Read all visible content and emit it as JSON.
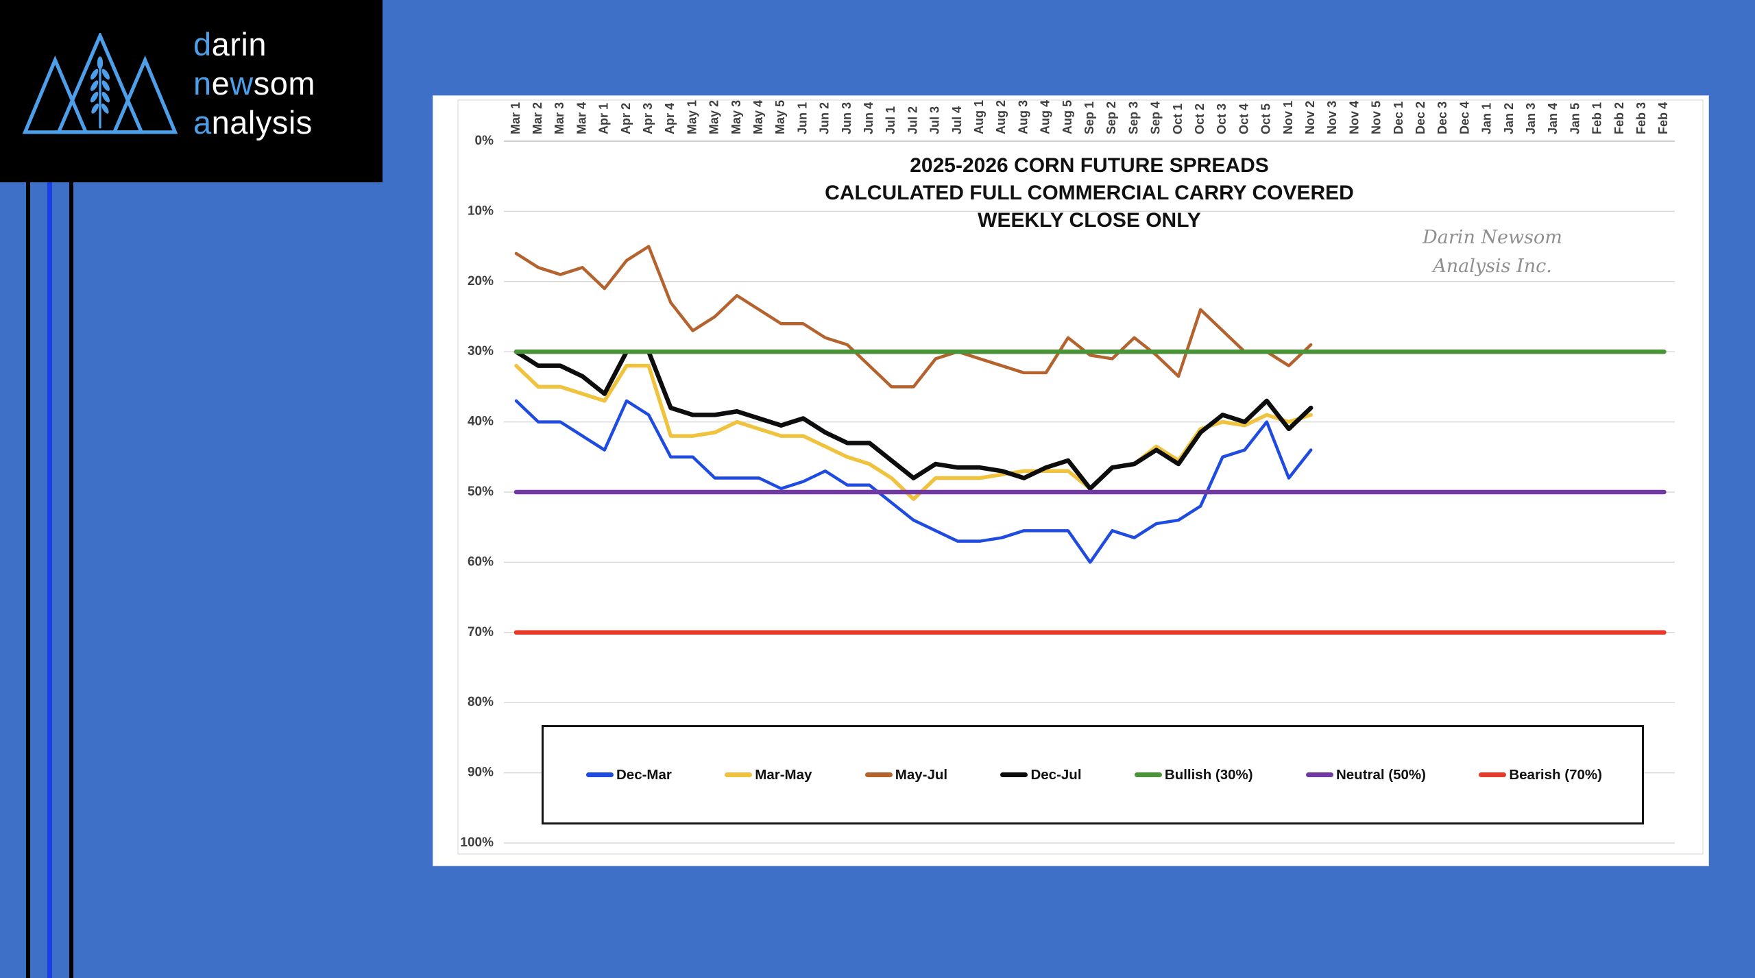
{
  "logo": {
    "darin_accent": "d",
    "darin_rest": "arin",
    "newsom_n": "n",
    "newsom_e": "e",
    "newsom_w": "w",
    "newsom_rest": "som",
    "analysis_accent": "a",
    "analysis_rest": "nalysis",
    "accent_color": "#4c9fe8"
  },
  "chart": {
    "title_line1": "2025-2026 CORN FUTURE SPREADS",
    "title_line2": "CALCULATED FULL COMMERCIAL CARRY COVERED",
    "title_line3": "WEEKLY CLOSE ONLY",
    "watermark_line1": "Darin Newsom",
    "watermark_line2": "Analysis Inc."
  },
  "legend": {
    "items": [
      {
        "label": "Dec-Mar",
        "color": "#1f4be0"
      },
      {
        "label": "Mar-May",
        "color": "#f0c33f"
      },
      {
        "label": "May-Jul",
        "color": "#b4632e"
      },
      {
        "label": "Dec-Jul",
        "color": "#0d0d0d"
      },
      {
        "label": "Bullish (30%)",
        "color": "#4a9338"
      },
      {
        "label": "Neutral (50%)",
        "color": "#7239a3"
      },
      {
        "label": "Bearish (70%)",
        "color": "#e53a2c"
      }
    ]
  },
  "chart_data": {
    "type": "line",
    "title": "2025-2026 CORN FUTURE SPREADS / CALCULATED FULL COMMERCIAL CARRY COVERED / WEEKLY CLOSE ONLY",
    "x_categories": [
      "Mar 1",
      "Mar 2",
      "Mar 3",
      "Mar 4",
      "Apr 1",
      "Apr 2",
      "Apr 3",
      "Apr 4",
      "May 1",
      "May 2",
      "May 3",
      "May 4",
      "May 5",
      "Jun 1",
      "Jun 2",
      "Jun 3",
      "Jun 4",
      "Jul 1",
      "Jul 2",
      "Jul 3",
      "Jul 4",
      "Aug 1",
      "Aug 2",
      "Aug 3",
      "Aug 4",
      "Aug 5",
      "Sep 1",
      "Sep 2",
      "Sep 3",
      "Sep 4",
      "Oct 1",
      "Oct 2",
      "Oct 3",
      "Oct 4",
      "Oct 5",
      "Nov 1",
      "Nov 2",
      "Nov 3",
      "Nov 4",
      "Nov 5",
      "Dec 1",
      "Dec 2",
      "Dec 3",
      "Dec 4",
      "Jan 1",
      "Jan 2",
      "Jan 3",
      "Jan 4",
      "Jan 5",
      "Feb 1",
      "Feb 2",
      "Feb 3",
      "Feb 4"
    ],
    "y_axis": {
      "min": 0,
      "max": 100,
      "tick_step": 10,
      "unit": "%",
      "inverted": true,
      "tick_labels": [
        "0%",
        "10%",
        "20%",
        "30%",
        "40%",
        "50%",
        "60%",
        "70%",
        "80%",
        "90%",
        "100%"
      ]
    },
    "series": [
      {
        "name": "Dec-Mar",
        "color": "#1f4be0",
        "values": [
          37,
          40,
          40,
          42,
          44,
          37,
          39,
          45,
          45,
          48,
          48,
          48,
          49.5,
          48.5,
          47,
          49,
          49,
          51.5,
          54,
          55.5,
          57,
          57,
          56.5,
          55.5,
          55.5,
          55.5,
          60,
          55.5,
          56.5,
          54.5,
          54,
          52,
          45,
          44,
          40,
          48,
          44
        ]
      },
      {
        "name": "Mar-May",
        "color": "#f0c33f",
        "values": [
          32,
          35,
          35,
          36,
          37,
          32,
          32,
          42,
          42,
          41.5,
          40,
          41,
          42,
          42,
          43.5,
          45,
          46,
          48,
          51,
          48,
          48,
          48,
          47.5,
          47,
          47,
          47,
          49.5,
          46.5,
          46,
          43.5,
          45.5,
          41,
          40,
          40.5,
          39,
          40,
          39
        ]
      },
      {
        "name": "May-Jul",
        "color": "#b4632e",
        "values": [
          16,
          18,
          19,
          18,
          21,
          17,
          15,
          23,
          27,
          25,
          22,
          24,
          26,
          26,
          28,
          29,
          32,
          35,
          35,
          31,
          30,
          31,
          32,
          33,
          33,
          28,
          30.5,
          31,
          28,
          30.5,
          33.5,
          24,
          27,
          30,
          30,
          32,
          29
        ]
      },
      {
        "name": "Dec-Jul",
        "color": "#0d0d0d",
        "values": [
          30,
          32,
          32,
          33.5,
          36,
          30,
          30,
          38,
          39,
          39,
          38.5,
          39.5,
          40.5,
          39.5,
          41.5,
          43,
          43,
          45.5,
          48,
          46,
          46.5,
          46.5,
          47,
          48,
          46.5,
          45.5,
          49.5,
          46.5,
          46,
          44,
          46,
          41.5,
          39,
          40,
          37,
          41,
          38
        ]
      }
    ],
    "ref_lines": [
      {
        "name": "Bullish (30%)",
        "value": 30,
        "color": "#4a9338"
      },
      {
        "name": "Neutral (50%)",
        "value": 50,
        "color": "#7239a3"
      },
      {
        "name": "Bearish (70%)",
        "value": 70,
        "color": "#e53a2c"
      }
    ],
    "grid": true,
    "legend_position": "bottom",
    "weeks_with_data": 37
  },
  "colors": {
    "background": "#3e70c8",
    "panel": "#ffffff",
    "stripe_blue": "#1840e6",
    "stripe_black": "#000000",
    "gridline": "#d9d9d9",
    "axis_line": "#bfbfbf",
    "axis_label": "#3f3f3f",
    "watermark": "#8f8f8f"
  }
}
